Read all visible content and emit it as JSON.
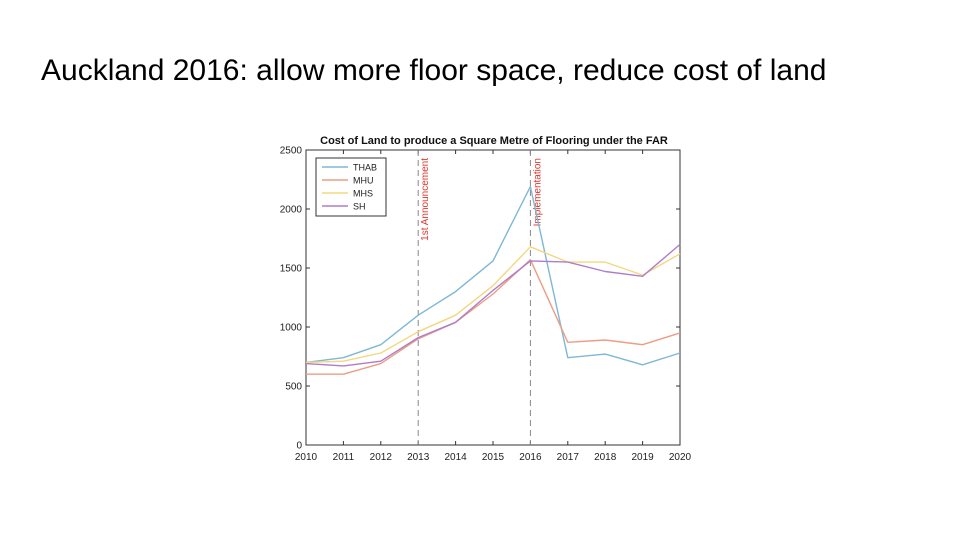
{
  "slide": {
    "title": "Auckland 2016: allow more floor space, reduce cost of land"
  },
  "chart_data": {
    "type": "line",
    "title": "Cost of Land to produce a Square Metre of Flooring under the FAR",
    "xlabel": "",
    "ylabel": "",
    "x": [
      2010,
      2011,
      2012,
      2013,
      2014,
      2015,
      2016,
      2017,
      2018,
      2019,
      2020
    ],
    "xlim": [
      2010,
      2020
    ],
    "ylim": [
      0,
      2500
    ],
    "xticks": [
      "2010",
      "2011",
      "2012",
      "2013",
      "2014",
      "2015",
      "2016",
      "2017",
      "2018",
      "2019",
      "2020"
    ],
    "yticks": [
      "0",
      "500",
      "1000",
      "1500",
      "2000",
      "2500"
    ],
    "legend_position": "top-left",
    "grid": false,
    "series": [
      {
        "name": "THAB",
        "color": "#7fb7d6",
        "values": [
          700,
          740,
          850,
          1100,
          1300,
          1560,
          2190,
          740,
          770,
          680,
          780
        ]
      },
      {
        "name": "MHU",
        "color": "#eb9e84",
        "values": [
          600,
          600,
          690,
          900,
          1040,
          1280,
          1570,
          870,
          890,
          850,
          950
        ]
      },
      {
        "name": "MHS",
        "color": "#f3d77e",
        "values": [
          700,
          710,
          780,
          960,
          1100,
          1350,
          1680,
          1550,
          1550,
          1440,
          1620
        ]
      },
      {
        "name": "SH",
        "color": "#b07cc9",
        "values": [
          690,
          670,
          710,
          910,
          1040,
          1310,
          1560,
          1550,
          1470,
          1430,
          1700
        ]
      }
    ],
    "annotations": [
      {
        "x": 2013,
        "label": "1st Announcement",
        "color": "#e0362b"
      },
      {
        "x": 2016,
        "label": "Implementation",
        "color": "#e0362b"
      }
    ]
  }
}
